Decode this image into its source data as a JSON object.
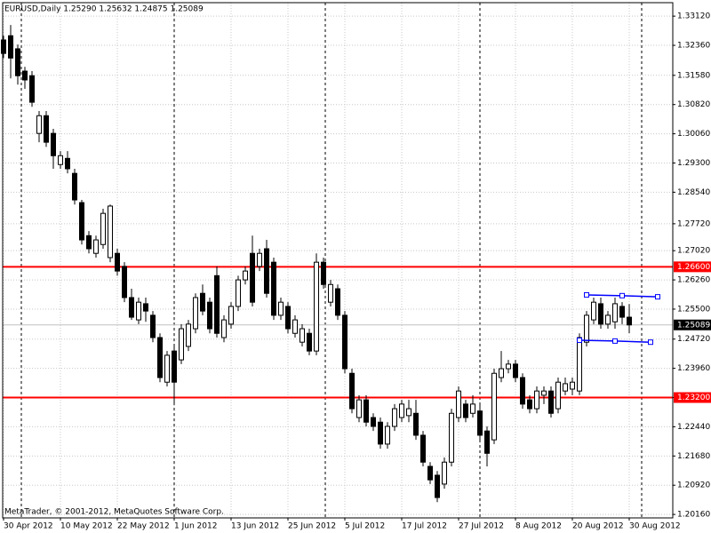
{
  "chart_data": {
    "type": "candlestick",
    "title": "EURUSD,Daily  1.25290 1.25632 1.24875 1.25089",
    "annotation": "MetaTrader, © 2001-2012, MetaQuotes Software Corp.",
    "categories": [
      "30 Apr 2012",
      null,
      null,
      null,
      null,
      null,
      null,
      null,
      "10 May 2012",
      null,
      null,
      null,
      null,
      null,
      null,
      null,
      "22 May 2012",
      null,
      null,
      null,
      null,
      null,
      null,
      null,
      "1 Jun 2012",
      null,
      null,
      null,
      null,
      null,
      null,
      null,
      "13 Jun 2012",
      null,
      null,
      null,
      null,
      null,
      null,
      null,
      "25 Jun 2012",
      null,
      null,
      null,
      null,
      null,
      null,
      null,
      "5 Jul 2012",
      null,
      null,
      null,
      null,
      null,
      null,
      null,
      "17 Jul 2012",
      null,
      null,
      null,
      null,
      null,
      null,
      null,
      "27 Jul 2012",
      null,
      null,
      null,
      null,
      null,
      null,
      null,
      "8 Aug 2012",
      null,
      null,
      null,
      null,
      null,
      null,
      null,
      "20 Aug 2012",
      null,
      null,
      null,
      null,
      null,
      null,
      null,
      "30 Aug 2012"
    ],
    "open": [
      1.325,
      1.3261,
      1.3227,
      1.3169,
      1.3157,
      1.3007,
      1.3053,
      1.3007,
      1.2926,
      1.2942,
      1.2903,
      1.2827,
      1.2741,
      1.2695,
      1.2718,
      1.2684,
      1.2695,
      1.2661,
      1.258,
      1.2522,
      1.2564,
      1.2534,
      1.2476,
      1.236,
      1.2441,
      1.2418,
      1.2453,
      1.2499,
      1.2591,
      1.2568,
      1.2637,
      1.2476,
      1.2511,
      1.2557,
      1.2626,
      1.2695,
      1.2661,
      1.2707,
      1.2672,
      1.2534,
      1.2557,
      1.2487,
      1.2464,
      1.2487,
      1.2441,
      1.2672,
      1.2568,
      1.2603,
      1.2534,
      1.2383,
      1.2268,
      1.2314,
      1.2268,
      1.2256,
      1.2199,
      1.2245,
      1.2268,
      1.2273,
      1.2279,
      1.2222,
      1.2141,
      1.2118,
      1.2095,
      1.2152,
      1.2268,
      1.2303,
      1.2279,
      1.2285,
      1.2233,
      1.221,
      1.2372,
      1.2395,
      1.2407,
      1.2372,
      1.2314,
      1.2291,
      1.2326,
      1.2337,
      1.2291,
      1.2337,
      1.2342,
      1.2337,
      1.2464,
      1.2522,
      1.2564,
      1.2511,
      1.2517,
      1.2557,
      1.2529
    ],
    "high": [
      1.3261,
      1.3289,
      1.3238,
      1.318,
      1.3169,
      1.3065,
      1.3065,
      1.3019,
      1.2961,
      1.2961,
      1.2915,
      1.2834,
      1.2753,
      1.2741,
      1.2811,
      1.2822,
      1.2707,
      1.2672,
      1.2603,
      1.258,
      1.258,
      1.2545,
      1.2487,
      1.2441,
      1.2453,
      1.2511,
      1.2522,
      1.2591,
      1.2614,
      1.258,
      1.2661,
      1.2534,
      1.2568,
      1.2637,
      1.2661,
      1.2741,
      1.2707,
      1.273,
      1.2684,
      1.258,
      1.2568,
      1.2534,
      1.2511,
      1.2499,
      1.2695,
      1.2684,
      1.2626,
      1.2614,
      1.2545,
      1.2395,
      1.2326,
      1.2326,
      1.2279,
      1.2268,
      1.2256,
      1.2303,
      1.2314,
      1.2314,
      1.2314,
      1.2233,
      1.2152,
      1.2129,
      1.2164,
      1.2291,
      1.2349,
      1.2314,
      1.2326,
      1.2303,
      1.2245,
      1.2395,
      1.2441,
      1.2418,
      1.2418,
      1.2383,
      1.2326,
      1.2349,
      1.2349,
      1.2349,
      1.2372,
      1.2372,
      1.2372,
      1.2487,
      1.2545,
      1.258,
      1.258,
      1.2545,
      1.258,
      1.2568,
      1.25632
    ],
    "low": [
      1.3203,
      1.315,
      1.3134,
      1.3123,
      1.3076,
      1.2984,
      1.2972,
      1.2915,
      1.2915,
      1.2903,
      1.2822,
      1.2718,
      1.2695,
      1.2684,
      1.2707,
      1.2672,
      1.2637,
      1.2568,
      1.2522,
      1.2511,
      1.2517,
      1.2464,
      1.236,
      1.2349,
      1.2303,
      1.2407,
      1.2441,
      1.2487,
      1.2534,
      1.2487,
      1.2476,
      1.2464,
      1.2499,
      1.2545,
      1.2614,
      1.2557,
      1.2649,
      1.258,
      1.2522,
      1.2522,
      1.2487,
      1.2476,
      1.2453,
      1.243,
      1.243,
      1.2603,
      1.2557,
      1.2522,
      1.2383,
      1.2279,
      1.2256,
      1.2245,
      1.2233,
      1.2187,
      1.2187,
      1.2233,
      1.2256,
      1.2256,
      1.221,
      1.2141,
      1.2095,
      1.2048,
      1.2083,
      1.2141,
      1.2256,
      1.2256,
      1.2268,
      1.221,
      1.2141,
      1.2199,
      1.236,
      1.2383,
      1.236,
      1.2291,
      1.2279,
      1.2279,
      1.2303,
      1.2268,
      1.2279,
      1.2326,
      1.2326,
      1.2326,
      1.2453,
      1.2511,
      1.2499,
      1.2499,
      1.2499,
      1.2511,
      1.24875
    ],
    "close": [
      1.3215,
      1.3203,
      1.3157,
      1.3146,
      1.3088,
      1.3053,
      1.2984,
      1.2949,
      1.2949,
      1.2915,
      1.2834,
      1.273,
      1.2707,
      1.273,
      1.2799,
      1.2818,
      1.2649,
      1.258,
      1.2529,
      1.2568,
      1.2545,
      1.2476,
      1.2372,
      1.243,
      1.236,
      1.2499,
      1.2511,
      1.258,
      1.2545,
      1.2499,
      1.2487,
      1.2522,
      1.2557,
      1.2626,
      1.2649,
      1.2568,
      1.2695,
      1.2591,
      1.2534,
      1.2568,
      1.2499,
      1.2522,
      1.2499,
      1.2441,
      1.2672,
      1.2614,
      1.2614,
      1.2534,
      1.2395,
      1.2291,
      1.2314,
      1.2256,
      1.2245,
      1.2199,
      1.2245,
      1.2291,
      1.2303,
      1.2291,
      1.2222,
      1.2152,
      1.2106,
      1.206,
      1.2152,
      1.2279,
      1.2337,
      1.2268,
      1.2303,
      1.2222,
      1.2175,
      1.2383,
      1.2395,
      1.2407,
      1.2372,
      1.2303,
      1.2291,
      1.2337,
      1.2337,
      1.2279,
      1.236,
      1.2356,
      1.236,
      1.2476,
      1.2534,
      1.2568,
      1.2511,
      1.2534,
      1.2564,
      1.2529,
      1.25089
    ],
    "up_color": "#ffffff",
    "down_color": "#000000",
    "ylim": [
      1.2007,
      1.3347
    ],
    "yticks": [
      {
        "value": 1.3312,
        "label": "1.33120"
      },
      {
        "value": 1.3236,
        "label": "1.32360"
      },
      {
        "value": 1.3158,
        "label": "1.31580"
      },
      {
        "value": 1.3082,
        "label": "1.30820"
      },
      {
        "value": 1.3006,
        "label": "1.30060"
      },
      {
        "value": 1.293,
        "label": "1.29300"
      },
      {
        "value": 1.2854,
        "label": "1.28540"
      },
      {
        "value": 1.2772,
        "label": "1.27720"
      },
      {
        "value": 1.2702,
        "label": "1.27020"
      },
      {
        "value": 1.2626,
        "label": "1.26260"
      },
      {
        "value": 1.255,
        "label": "1.25500"
      },
      {
        "value": 1.2472,
        "label": "1.24720"
      },
      {
        "value": 1.2396,
        "label": "1.23960"
      },
      {
        "value": 1.232,
        "label": "1.23200"
      },
      {
        "value": 1.2244,
        "label": "1.22440"
      },
      {
        "value": 1.2168,
        "label": "1.21680"
      },
      {
        "value": 1.2092,
        "label": "1.20920"
      },
      {
        "value": 1.2016,
        "label": "1.20160"
      }
    ],
    "grid": true,
    "hlines": [
      {
        "value": 1.266,
        "label": "1.26600",
        "color": "#ff0000"
      },
      {
        "value": 1.232,
        "label": "1.23200",
        "color": "#ff0000"
      }
    ],
    "bid": {
      "value": 1.25089,
      "label": "1.25089"
    },
    "trendlines": [
      {
        "color": "#0000ff",
        "x": [
          82,
          87,
          92
        ],
        "y": [
          1.2587,
          1.2585,
          1.2582
        ]
      },
      {
        "color": "#0000ff",
        "x": [
          81,
          86,
          91
        ],
        "y": [
          1.2469,
          1.2467,
          1.2464
        ]
      }
    ]
  }
}
